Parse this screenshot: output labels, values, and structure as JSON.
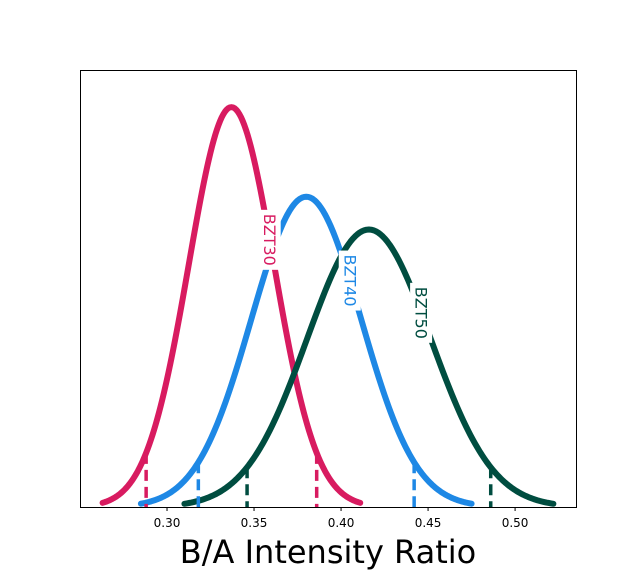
{
  "chart_data": {
    "type": "line",
    "title": "",
    "xlabel": "B/A Intensity Ratio",
    "ylabel": "",
    "xlim": [
      0.25,
      0.535
    ],
    "ylim": [
      0,
      1.0
    ],
    "xticks": [
      "0.30",
      "0.35",
      "0.40",
      "0.45",
      "0.50"
    ],
    "y_axis_ticks": false,
    "grid": false,
    "legend": "none",
    "series": [
      {
        "name": "BZT30",
        "color": "#d81b60",
        "mean": 0.337,
        "sd": 0.0245,
        "peak": 0.915,
        "x_range": [
          0.263,
          0.411
        ],
        "dashed_markers": [
          0.288,
          0.386
        ],
        "label_x": 0.359
      },
      {
        "name": "BZT40",
        "color": "#1e88e5",
        "mean": 0.38,
        "sd": 0.0315,
        "peak": 0.71,
        "x_range": [
          0.285,
          0.475
        ],
        "dashed_markers": [
          0.318,
          0.442
        ],
        "label_x": 0.405
      },
      {
        "name": "BZT50",
        "color": "#004d40",
        "mean": 0.416,
        "sd": 0.0355,
        "peak": 0.635,
        "x_range": [
          0.31,
          0.522
        ],
        "dashed_markers": [
          0.346,
          0.486
        ],
        "label_x": 0.446
      }
    ]
  }
}
